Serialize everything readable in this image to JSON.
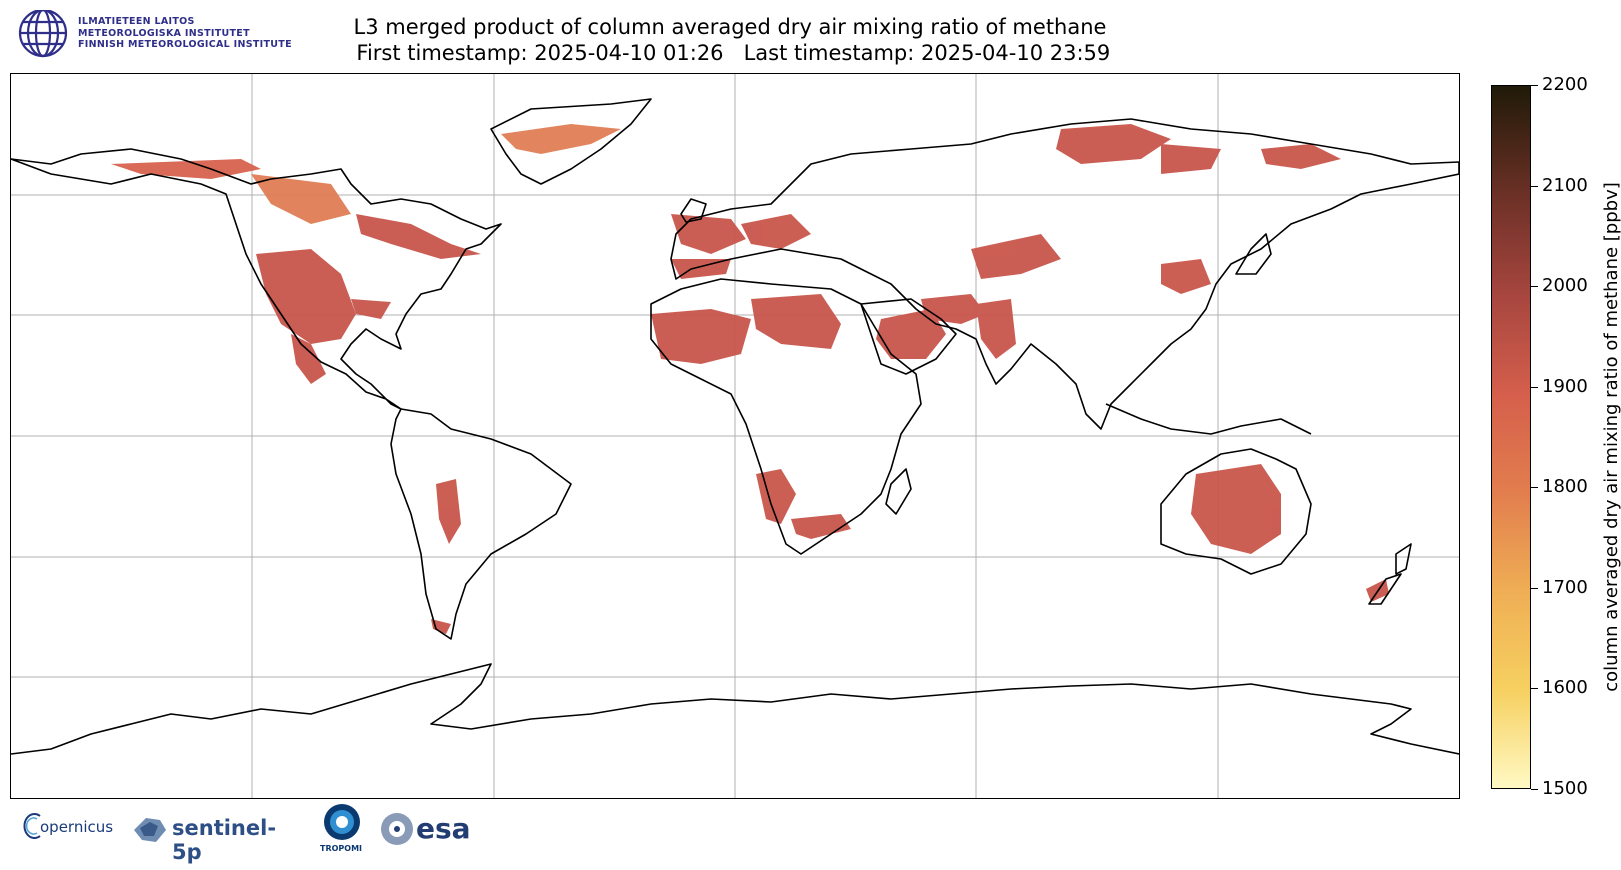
{
  "header": {
    "institute_lines": [
      "ILMATIETEEN LAITOS",
      "METEOROLOGISKA INSTITUTET",
      "FINNISH METEOROLOGICAL INSTITUTE"
    ],
    "title_line1": "L3 merged product of column averaged dry air mixing ratio of methane",
    "title_line2": " First timestamp: 2025-04-10 01:26   Last timestamp: 2025-04-10 23:59"
  },
  "colorbar": {
    "label": "column averaged dry air mixing ratio of methane [ppbv]",
    "range": [
      1500,
      2200
    ],
    "ticks": [
      "2200",
      "2100",
      "2000",
      "1900",
      "1800",
      "1700",
      "1600",
      "1500"
    ],
    "colors": [
      "#fff9c4",
      "#f6d060",
      "#efae55",
      "#e27e4e",
      "#d55f4c",
      "#a7463f",
      "#6e3127",
      "#201a08"
    ]
  },
  "map": {
    "projection": "equirectangular",
    "gridlines": true,
    "data_color_dominant": "#c9564b",
    "data_color_high_latitude": "#e07d55"
  },
  "footer_logos": {
    "copernicus": "opernicus",
    "sentinel": "sentinel-5p",
    "tropomi": "TROPOMI",
    "esa": "esa"
  }
}
